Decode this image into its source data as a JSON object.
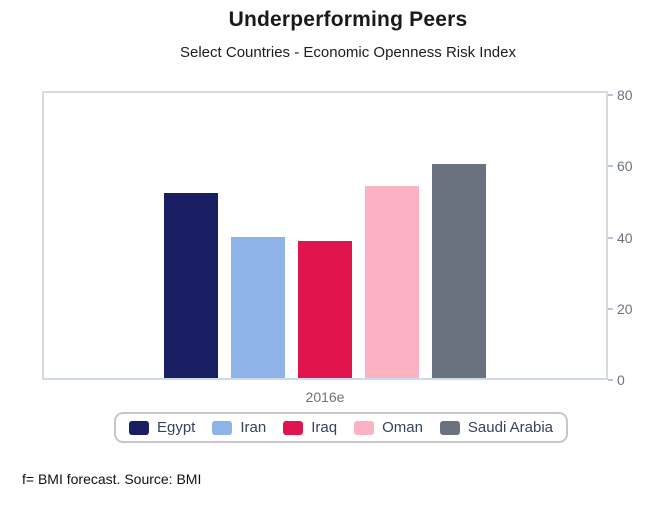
{
  "title": "Underperforming Peers",
  "subtitle": "Select Countries - Economic Openness Risk Index",
  "footer": {
    "note": "f= BMI forecast. Source: BMI"
  },
  "chart_data": {
    "type": "bar",
    "title": "Underperforming Peers",
    "subtitle": "Select Countries - Economic Openness Risk Index",
    "x_label": "2016e",
    "categories": [
      "2016e"
    ],
    "series": [
      {
        "name": "Egypt",
        "color": "#191e63",
        "values": [
          52.0
        ]
      },
      {
        "name": "Iran",
        "color": "#8db3e8",
        "values": [
          39.7
        ]
      },
      {
        "name": "Iraq",
        "color": "#e0154d",
        "values": [
          38.4
        ]
      },
      {
        "name": "Oman",
        "color": "#fdb2c4",
        "values": [
          54.0
        ]
      },
      {
        "name": "Saudi Arabia",
        "color": "#6a7280",
        "values": [
          60.0
        ]
      }
    ],
    "y_axis": {
      "min": 0,
      "max": 80,
      "ticks": [
        0,
        20,
        40,
        60,
        80
      ],
      "side": "right"
    },
    "grid": false,
    "legend_position": "bottom"
  }
}
